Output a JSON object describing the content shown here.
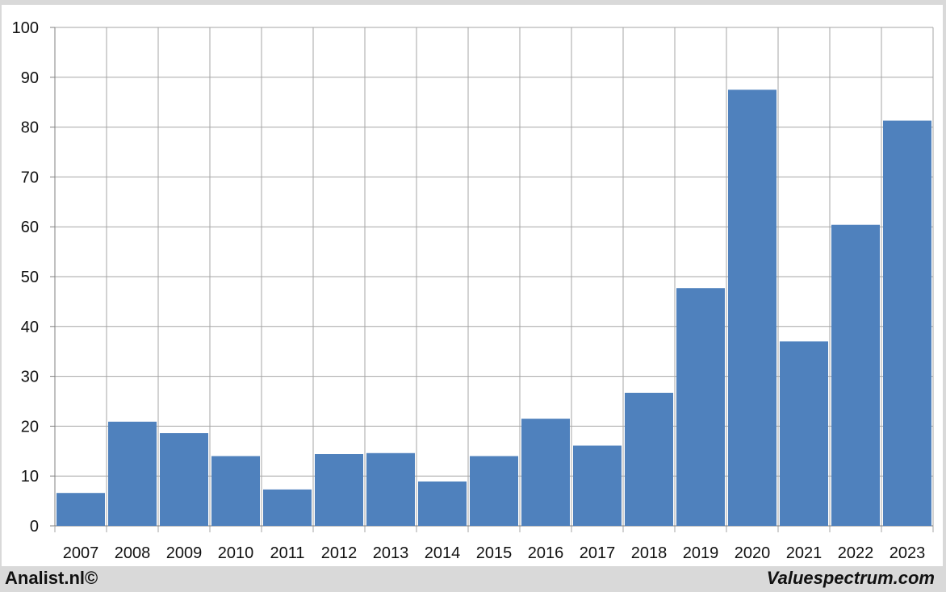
{
  "chart_data": {
    "type": "bar",
    "categories": [
      "2007",
      "2008",
      "2009",
      "2010",
      "2011",
      "2012",
      "2013",
      "2014",
      "2015",
      "2016",
      "2017",
      "2018",
      "2019",
      "2020",
      "2021",
      "2022",
      "2023"
    ],
    "values": [
      6.6,
      20.9,
      18.6,
      14.0,
      7.3,
      14.4,
      14.6,
      8.9,
      14.0,
      21.5,
      16.1,
      26.7,
      47.7,
      87.5,
      37.0,
      60.4,
      81.3
    ],
    "title": "",
    "xlabel": "",
    "ylabel": "",
    "ylim": [
      0,
      100
    ],
    "yticks": [
      0,
      10,
      20,
      30,
      40,
      50,
      60,
      70,
      80,
      90,
      100
    ],
    "grid": true,
    "bar_color": "#4f81bd"
  },
  "footer": {
    "left": "Analist.nl©",
    "right": "Valuespectrum.com"
  }
}
